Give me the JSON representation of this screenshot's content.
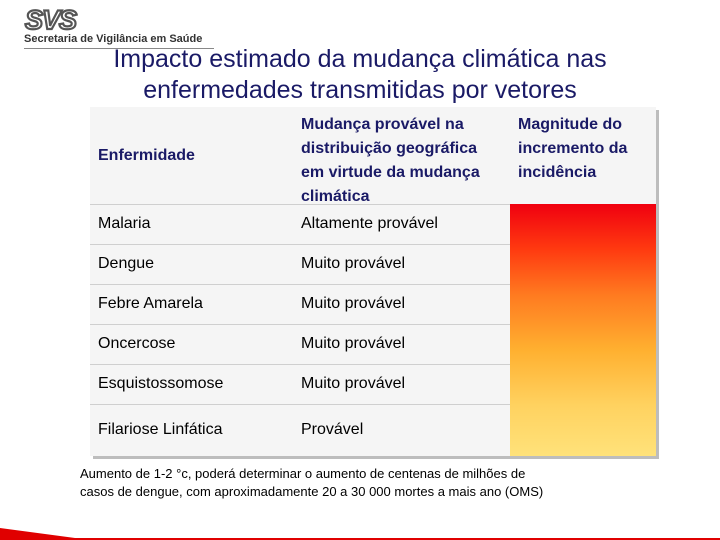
{
  "header": {
    "logo_text": "SVS",
    "logo_subtitle": "Secretaria de Vigilância em Saúde"
  },
  "slide": {
    "title_line1": "Impacto estimado da mudança climática nas",
    "title_line2": "enfermedades transmitidas por vetores"
  },
  "table": {
    "headers": {
      "disease": "Enfermidade",
      "change_lines": [
        "Mudança provável na",
        "distribuição geográfica",
        "em virtude da mudança",
        "climática"
      ],
      "magnitude_lines": [
        "Magnitude do",
        "incremento da",
        "incidência"
      ]
    },
    "rows": [
      {
        "disease": "Malaria",
        "change": "Altamente provável"
      },
      {
        "disease": "Dengue",
        "change": "Muito provável"
      },
      {
        "disease": "Febre Amarela",
        "change": "Muito provável"
      },
      {
        "disease": "Oncercose",
        "change": "Muito provável"
      },
      {
        "disease": "Esquistossomose",
        "change": "Muito provável"
      },
      {
        "disease": "Filariose Linfática",
        "change": "Provável"
      }
    ]
  },
  "footnote": {
    "line1": "Aumento  de  1-2 °c, poderá determinar o aumento de centenas de milhões de",
    "line2": "casos de dengue,  com aproximadamente 20 a 30 000 mortes a mais ano (OMS)"
  },
  "colors": {
    "title": "#1a1a66",
    "accent_red": "#e00000",
    "gradient_top": "#f00010",
    "gradient_bottom": "#ffe27a"
  }
}
